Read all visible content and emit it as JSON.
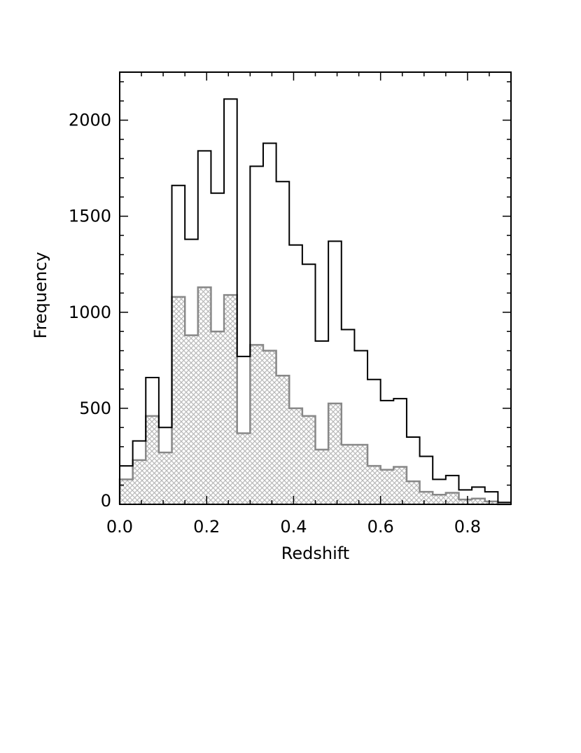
{
  "chart_data": {
    "type": "histogram",
    "xlabel": "Redshift",
    "ylabel": "Frequency",
    "xlim": [
      0.0,
      0.9
    ],
    "ylim": [
      0,
      2250
    ],
    "xticks": [
      0.0,
      0.2,
      0.4,
      0.6,
      0.8
    ],
    "xtick_labels": [
      "0.0",
      "0.2",
      "0.4",
      "0.6",
      "0.8"
    ],
    "yticks": [
      0,
      500,
      1000,
      1500,
      2000
    ],
    "ytick_labels": [
      "0",
      "500",
      "1000",
      "1500",
      "2000"
    ],
    "bin_edges": [
      0.0,
      0.03,
      0.06,
      0.09,
      0.12,
      0.15,
      0.18,
      0.21,
      0.24,
      0.27,
      0.3,
      0.33,
      0.36,
      0.39,
      0.42,
      0.45,
      0.48,
      0.51,
      0.54,
      0.57,
      0.6,
      0.63,
      0.66,
      0.69,
      0.72,
      0.75,
      0.78,
      0.81,
      0.84,
      0.87,
      0.9
    ],
    "series": [
      {
        "style": "outline",
        "color": "#000000",
        "values": [
          200,
          330,
          660,
          400,
          1660,
          1380,
          1840,
          1620,
          2110,
          770,
          1760,
          1880,
          1680,
          1350,
          1250,
          850,
          1370,
          910,
          800,
          650,
          540,
          550,
          350,
          250,
          130,
          150,
          75,
          90,
          65,
          10
        ]
      },
      {
        "style": "hatched",
        "color": "#888888",
        "values": [
          130,
          230,
          460,
          270,
          1080,
          880,
          1130,
          900,
          1090,
          370,
          830,
          800,
          670,
          500,
          460,
          285,
          525,
          310,
          310,
          200,
          180,
          195,
          120,
          65,
          50,
          60,
          25,
          30,
          15,
          0
        ]
      }
    ]
  }
}
